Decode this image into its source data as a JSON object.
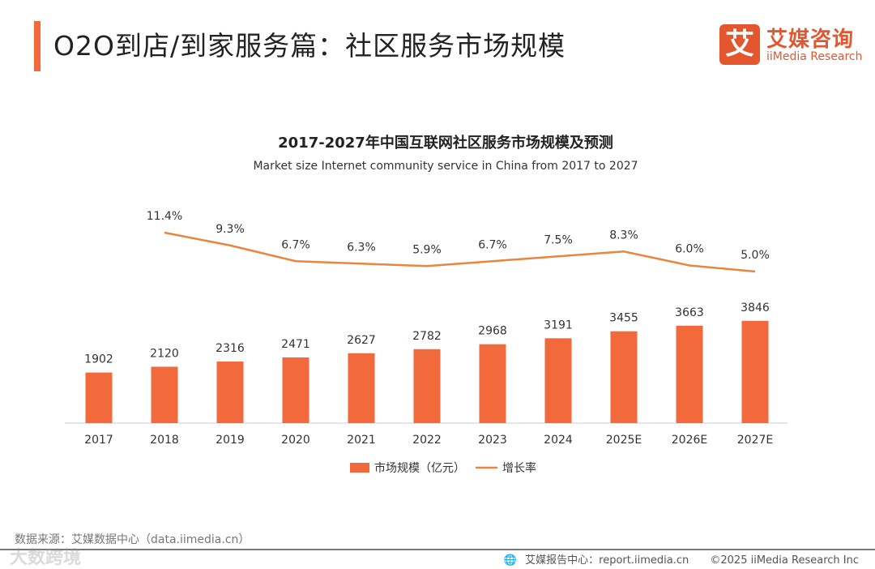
{
  "header": {
    "title": "O2O到店/到家服务篇：社区服务市场规模",
    "logo_mark": "艾",
    "logo_cn": "艾媒咨询",
    "logo_en": "iiMedia Research"
  },
  "chart_data": {
    "type": "bar",
    "title": "2017-2027年中国互联网社区服务市场规模及预测",
    "subtitle": "Market  size  Internet community service  in China from 2017 to 2027",
    "categories": [
      "2017",
      "2018",
      "2019",
      "2020",
      "2021",
      "2022",
      "2023",
      "2024",
      "2025E",
      "2026E",
      "2027E"
    ],
    "series": [
      {
        "name": "市场规模（亿元）",
        "type": "bar",
        "color": "#f26a3c",
        "values": [
          1902,
          2120,
          2316,
          2471,
          2627,
          2782,
          2968,
          3191,
          3455,
          3663,
          3846
        ]
      },
      {
        "name": "增长率",
        "type": "line",
        "color": "#e8863f",
        "values": [
          null,
          11.4,
          9.3,
          6.7,
          6.3,
          5.9,
          6.7,
          7.5,
          8.3,
          6.0,
          5.0
        ],
        "unit": "%"
      }
    ],
    "legend": "bottom"
  },
  "footer": {
    "source": "数据来源：艾媒数据中心（data.iimedia.cn）",
    "report": "艾媒报告中心：report.iimedia.cn",
    "copyright": "©2025  iiMedia Research  Inc",
    "watermark": "大数跨境"
  }
}
